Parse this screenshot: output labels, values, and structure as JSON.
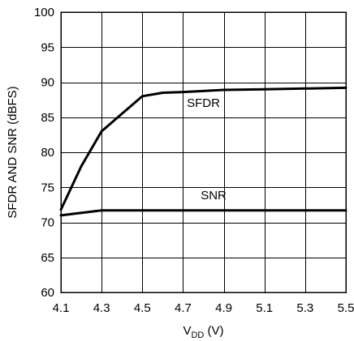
{
  "chart_data": {
    "type": "line",
    "title": "",
    "xlabel": "V",
    "xlabel_subscript": "DD",
    "xlabel_unit": " (V)",
    "ylabel": "SFDR AND SNR (dBFS)",
    "xlim": [
      4.1,
      5.5
    ],
    "ylim": [
      60,
      100
    ],
    "grid": true,
    "x_ticks": [
      "4.1",
      "4.3",
      "4.5",
      "4.7",
      "4.9",
      "5.1",
      "5.3",
      "5.5"
    ],
    "y_ticks": [
      "60",
      "65",
      "70",
      "75",
      "80",
      "85",
      "90",
      "95",
      "100"
    ],
    "x_tick_values": [
      4.1,
      4.3,
      4.5,
      4.7,
      4.9,
      5.1,
      5.3,
      5.5
    ],
    "y_tick_values": [
      60,
      65,
      70,
      75,
      80,
      85,
      90,
      95,
      100
    ],
    "series": [
      {
        "name": "SFDR",
        "x": [
          4.1,
          4.2,
          4.3,
          4.4,
          4.5,
          4.6,
          4.7,
          4.9,
          5.1,
          5.3,
          5.5
        ],
        "y": [
          71.8,
          78.0,
          83.0,
          85.5,
          88.0,
          88.5,
          88.6,
          88.9,
          89.0,
          89.1,
          89.2
        ]
      },
      {
        "name": "SNR",
        "x": [
          4.1,
          4.3,
          4.5,
          4.7,
          4.9,
          5.1,
          5.3,
          5.5
        ],
        "y": [
          71.0,
          71.7,
          71.7,
          71.7,
          71.7,
          71.7,
          71.7,
          71.7
        ]
      }
    ],
    "annotations": [
      {
        "text": "SFDR",
        "x": 4.8,
        "y": 86.5
      },
      {
        "text": "SNR",
        "x": 4.85,
        "y": 73.3
      }
    ]
  }
}
